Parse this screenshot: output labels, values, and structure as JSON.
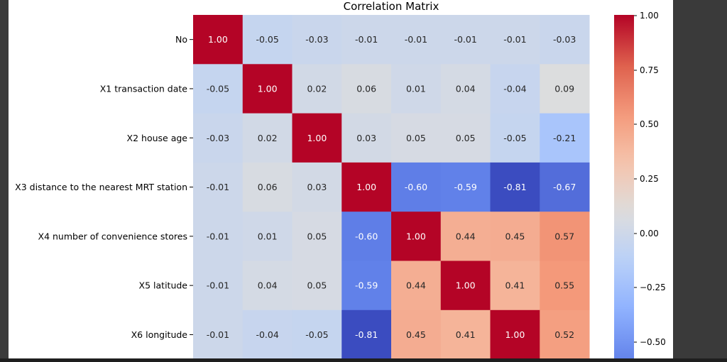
{
  "chart_data": {
    "type": "heatmap",
    "title": "Correlation Matrix",
    "row_labels": [
      "No",
      "X1 transaction date",
      "X2 house age",
      "X3 distance to the nearest MRT station",
      "X4 number of convenience stores",
      "X5 latitude",
      "X6 longitude"
    ],
    "values": [
      [
        1.0,
        -0.05,
        -0.03,
        -0.01,
        -0.01,
        -0.01,
        -0.01,
        -0.03
      ],
      [
        -0.05,
        1.0,
        0.02,
        0.06,
        0.01,
        0.04,
        -0.04,
        0.09
      ],
      [
        -0.03,
        0.02,
        1.0,
        0.03,
        0.05,
        0.05,
        -0.05,
        -0.21
      ],
      [
        -0.01,
        0.06,
        0.03,
        1.0,
        -0.6,
        -0.59,
        -0.81,
        -0.67
      ],
      [
        -0.01,
        0.01,
        0.05,
        -0.6,
        1.0,
        0.44,
        0.45,
        0.57
      ],
      [
        -0.01,
        0.04,
        0.05,
        -0.59,
        0.44,
        1.0,
        0.41,
        0.55
      ],
      [
        -0.01,
        -0.04,
        -0.05,
        -0.81,
        0.45,
        0.41,
        1.0,
        0.52
      ]
    ],
    "colormap": "coolwarm",
    "colorbar_ticks": [
      "1.00",
      "0.75",
      "0.50",
      "0.25",
      "0.00",
      "−0.25",
      "−0.50"
    ],
    "value_format": "2 decimals"
  }
}
